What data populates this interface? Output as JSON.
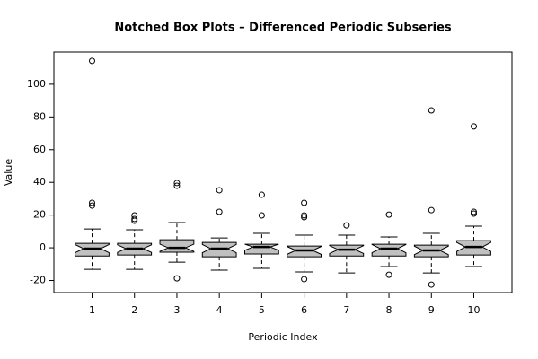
{
  "chart_data": {
    "type": "boxplot",
    "title": "Notched Box Plots – Differenced Periodic Subseries",
    "x_label": "Periodic Index",
    "y_label": "Value",
    "categories": [
      "1",
      "2",
      "3",
      "4",
      "5",
      "6",
      "7",
      "8",
      "9",
      "10"
    ],
    "color": "#c0c0c0",
    "boxes": [
      {
        "whislo": -13.2,
        "q1": -5,
        "med": -0.5,
        "q3": 2.7,
        "whishi": 11.5,
        "notch_lo": -3,
        "notch_hi": 2,
        "outliers": [
          114.3,
          27.5,
          25.8
        ]
      },
      {
        "whislo": -13.2,
        "q1": -4.4,
        "med": -0.5,
        "q3": 2.7,
        "whishi": 11,
        "notch_lo": -2.8,
        "notch_hi": 1.8,
        "outliers": [
          19.8,
          17.6,
          16.5
        ]
      },
      {
        "whislo": -8.8,
        "q1": -2.7,
        "med": 0,
        "q3": 4.9,
        "whishi": 15.4,
        "notch_lo": -2.2,
        "notch_hi": 2.2,
        "outliers": [
          39.6,
          37.9,
          -18.7
        ]
      },
      {
        "whislo": -13.7,
        "q1": -5.5,
        "med": -0.5,
        "q3": 3.3,
        "whishi": 6,
        "notch_lo": -3,
        "notch_hi": 2,
        "outliers": [
          35.2,
          22
        ]
      },
      {
        "whislo": -12.6,
        "q1": -3.8,
        "med": 0.5,
        "q3": 2.2,
        "whishi": 8.8,
        "notch_lo": -1.5,
        "notch_hi": 2.2,
        "outliers": [
          32.4,
          19.8
        ]
      },
      {
        "whislo": -14.8,
        "q1": -5.5,
        "med": -1.6,
        "q3": 1.1,
        "whishi": 7.7,
        "notch_lo": -4,
        "notch_hi": 0.8,
        "outliers": [
          27.5,
          19.8,
          18.7,
          -19.2
        ]
      },
      {
        "whislo": -15.4,
        "q1": -5,
        "med": -1.1,
        "q3": 1.6,
        "whishi": 7.7,
        "notch_lo": -3.5,
        "notch_hi": 1.3,
        "outliers": [
          13.7
        ]
      },
      {
        "whislo": -11.5,
        "q1": -5,
        "med": -0.5,
        "q3": 2.2,
        "whishi": 6.6,
        "notch_lo": -3,
        "notch_hi": 2,
        "outliers": [
          20.3,
          -16.5
        ]
      },
      {
        "whislo": -15.4,
        "q1": -5.5,
        "med": -1.6,
        "q3": 1.6,
        "whishi": 8.8,
        "notch_lo": -4.2,
        "notch_hi": 1,
        "outliers": [
          84,
          23,
          -22.5
        ]
      },
      {
        "whislo": -11.5,
        "q1": -4.4,
        "med": 0.5,
        "q3": 4.4,
        "whishi": 13.2,
        "notch_lo": -2.2,
        "notch_hi": 3.2,
        "outliers": [
          74.2,
          22,
          20.9
        ]
      }
    ],
    "xlim": [
      0.1,
      10.9
    ],
    "ylim": [
      -27.4,
      119.7
    ],
    "yticks": [
      -20,
      0,
      20,
      40,
      60,
      80,
      100
    ]
  }
}
